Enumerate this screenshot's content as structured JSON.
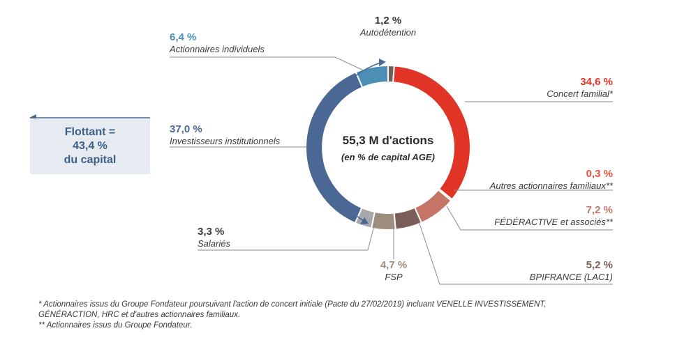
{
  "chart_data": {
    "type": "pie",
    "variant": "donut",
    "center_title": "55,3 M d'actions",
    "center_subtitle": "(en % de capital AGE)",
    "slices": [
      {
        "label": "Autodétention",
        "value_label": "1,2 %",
        "value": 1.2,
        "color": "#6e6159"
      },
      {
        "label": "Concert familial*",
        "value_label": "34,6 %",
        "value": 34.6,
        "color": "#e03427"
      },
      {
        "label": "Autres actionnaires familiaux**",
        "value_label": "0,3 %",
        "value": 0.3,
        "color": "#e6533b"
      },
      {
        "label": "FÉDÉRACTIVE et associés**",
        "value_label": "7,2 %",
        "value": 7.2,
        "color": "#c57565"
      },
      {
        "label": "BPIFRANCE (LAC1)",
        "value_label": "5,2 %",
        "value": 5.2,
        "color": "#7b5e57"
      },
      {
        "label": "FSP",
        "value_label": "4,7 %",
        "value": 4.7,
        "color": "#9f8d7d"
      },
      {
        "label": "Salariés",
        "value_label": "3,3 %",
        "value": 3.3,
        "color": "#a8a8ac"
      },
      {
        "label": "Investisseurs institutionnels",
        "value_label": "37,0 %",
        "value": 37.0,
        "color": "#4b6894"
      },
      {
        "label": "Actionnaires individuels",
        "value_label": "6,4 %",
        "value": 6.4,
        "color": "#4c8fb4"
      }
    ]
  },
  "float_box": {
    "line1": "Flottant =",
    "line2": "43,4 %",
    "line3": "du capital"
  },
  "footnotes": {
    "note1_line1": "*  Actionnaires issus du Groupe Fondateur poursuivant l'action de concert initiale (Pacte du 27/02/2019) incluant VENELLE INVESTISSEMENT,",
    "note1_line2": "    GÉNÉRACTION, HRC et d'autres actionnaires familiaux.",
    "note2": "** Actionnaires issus du Groupe Fondateur."
  }
}
